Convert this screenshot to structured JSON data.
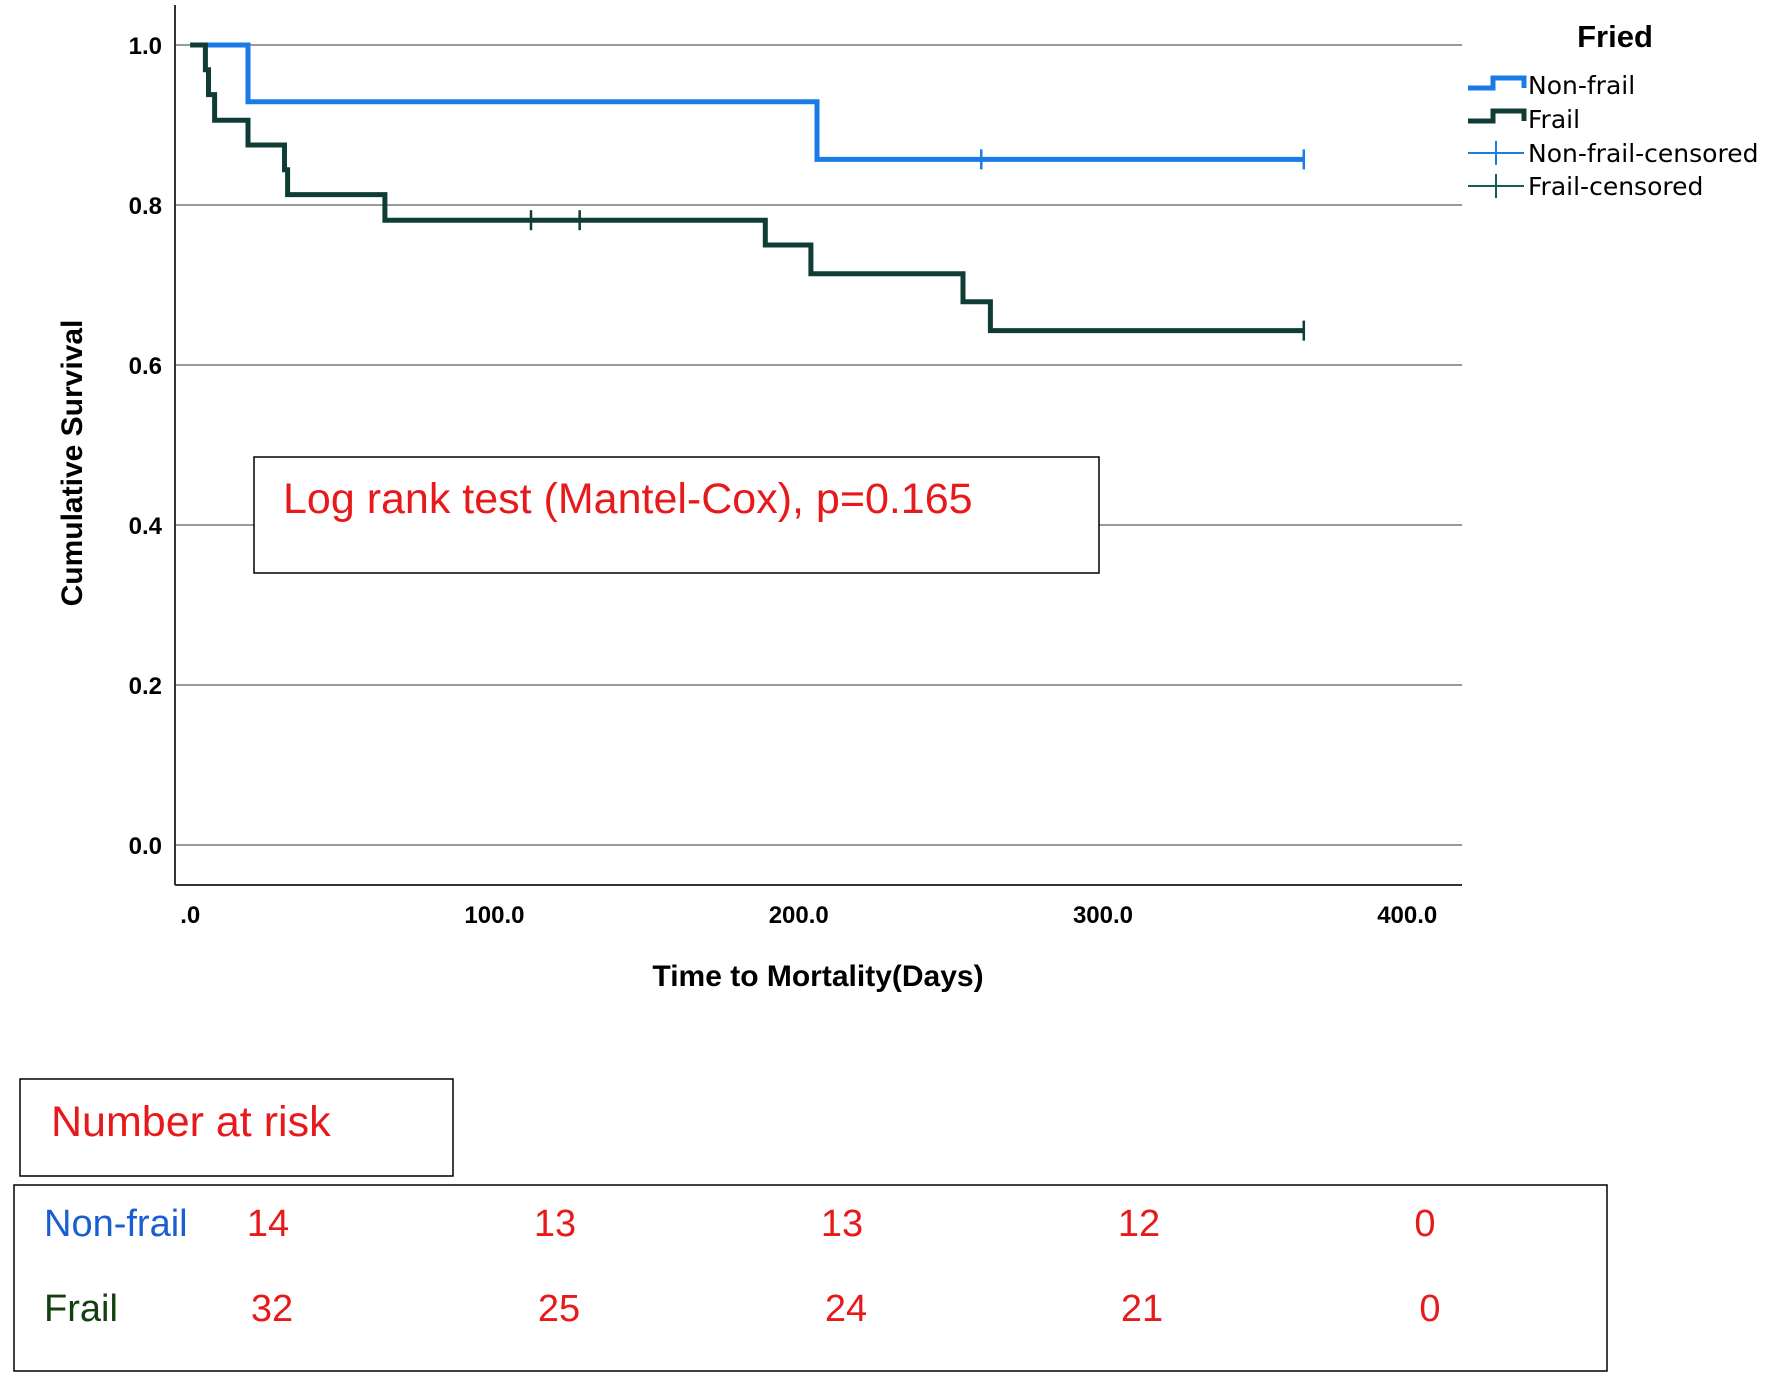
{
  "chart_data": {
    "type": "line",
    "subtype": "kaplan-meier",
    "xlabel": "Time to Mortality(Days)",
    "ylabel": "Cumulative Survival",
    "xlim": [
      -5,
      418
    ],
    "ylim": [
      -0.05,
      1.05
    ],
    "x_ticks": [
      0,
      100,
      200,
      300,
      400
    ],
    "x_tick_labels": [
      ".0",
      "100.0",
      "200.0",
      "300.0",
      "400.0"
    ],
    "y_ticks": [
      0,
      0.2,
      0.4,
      0.6,
      0.8,
      1.0
    ],
    "y_tick_labels": [
      "0.0",
      "0.2",
      "0.4",
      "0.6",
      "0.8",
      "1.0"
    ],
    "grid": "horizontal",
    "legend": {
      "title": "Fried",
      "position": "top-right",
      "entries": [
        "Non-frail",
        "Frail",
        "Non-frail-censored",
        "Frail-censored"
      ]
    },
    "series": [
      {
        "name": "Non-frail",
        "color": "#1a7be6",
        "steps": [
          [
            0,
            1.0
          ],
          [
            19,
            0.929
          ],
          [
            206,
            0.857
          ],
          [
            366,
            0.857
          ]
        ],
        "censored": [
          [
            260,
            0.857
          ],
          [
            366,
            0.857
          ]
        ]
      },
      {
        "name": "Frail",
        "color": "#0f3d35",
        "steps": [
          [
            0,
            1.0
          ],
          [
            5,
            0.969
          ],
          [
            6,
            0.938
          ],
          [
            8,
            0.906
          ],
          [
            19,
            0.875
          ],
          [
            31,
            0.844
          ],
          [
            32,
            0.813
          ],
          [
            64,
            0.781
          ],
          [
            189,
            0.75
          ],
          [
            204,
            0.714
          ],
          [
            254,
            0.679
          ],
          [
            263,
            0.643
          ],
          [
            366,
            0.643
          ]
        ],
        "censored": [
          [
            112,
            0.781
          ],
          [
            128,
            0.781
          ],
          [
            366,
            0.643
          ]
        ]
      }
    ],
    "annotations": [
      "Log rank test (Mantel-Cox), p=0.165"
    ]
  },
  "risk_table": {
    "title": "Number at risk",
    "rows": [
      {
        "label": "Non-frail",
        "color": "#1a5fd1",
        "values": [
          "14",
          "13",
          "13",
          "12",
          "0"
        ]
      },
      {
        "label": "Frail",
        "color": "#13400f",
        "values": [
          "32",
          "25",
          "24",
          "21",
          "0"
        ]
      }
    ]
  }
}
